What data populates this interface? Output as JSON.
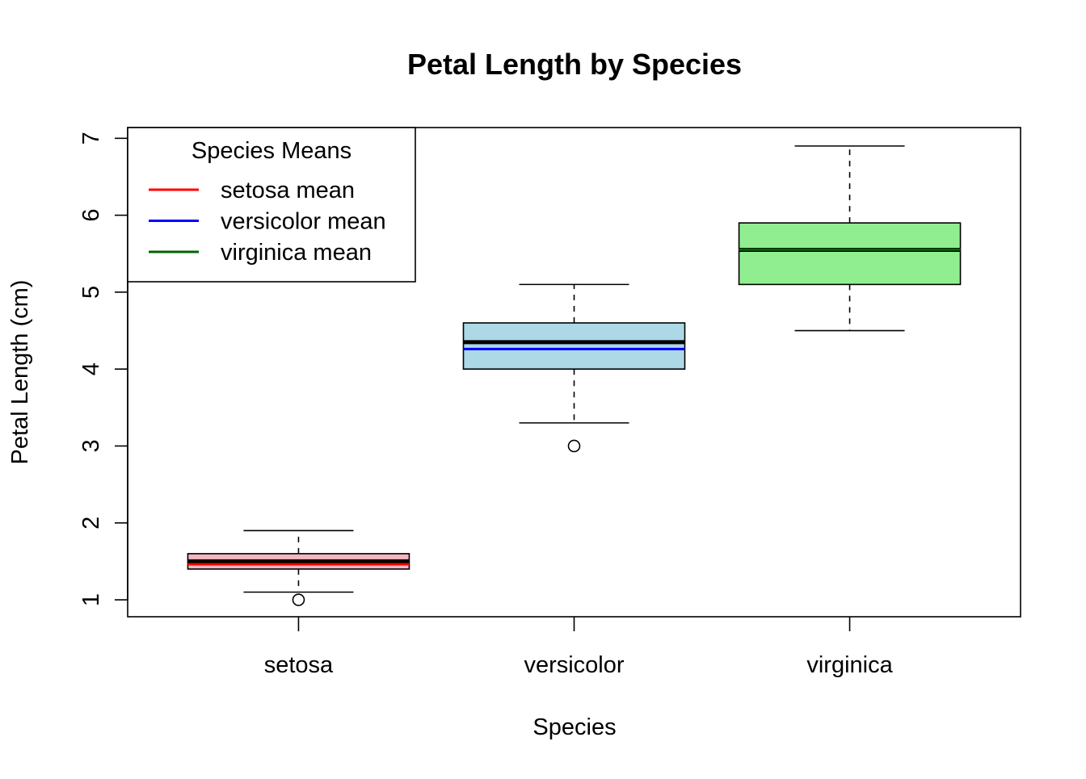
{
  "chart_data": {
    "type": "boxplot",
    "title": "Petal Length by Species",
    "xlabel": "Species",
    "ylabel": "Petal Length (cm)",
    "categories": [
      "setosa",
      "versicolor",
      "virginica"
    ],
    "ylim": [
      0.78,
      7.14
    ],
    "yticks": [
      1,
      2,
      3,
      4,
      5,
      6,
      7
    ],
    "grid": false,
    "boxes": [
      {
        "name": "setosa",
        "whisker_low": 1.1,
        "q1": 1.4,
        "median": 1.5,
        "q3": 1.6,
        "whisker_high": 1.9,
        "outliers": [
          1.0
        ],
        "fill": "#f4b6c2"
      },
      {
        "name": "versicolor",
        "whisker_low": 3.3,
        "q1": 4.0,
        "median": 4.35,
        "q3": 4.6,
        "whisker_high": 5.1,
        "outliers": [
          3.0
        ],
        "fill": "#add8e6"
      },
      {
        "name": "virginica",
        "whisker_low": 4.5,
        "q1": 5.1,
        "median": 5.55,
        "q3": 5.9,
        "whisker_high": 6.9,
        "outliers": [],
        "fill": "#90ee90"
      }
    ],
    "means": [
      {
        "name": "setosa mean",
        "value": 1.462,
        "color": "#ff0000"
      },
      {
        "name": "versicolor mean",
        "value": 4.26,
        "color": "#0000ff"
      },
      {
        "name": "virginica mean",
        "value": 5.552,
        "color": "#006400"
      }
    ],
    "legend": {
      "title": "Species Means",
      "placement": "top-left",
      "entries": [
        {
          "label": "setosa mean",
          "color": "#ff0000"
        },
        {
          "label": "versicolor mean",
          "color": "#0000ff"
        },
        {
          "label": "virginica mean",
          "color": "#006400"
        }
      ]
    }
  }
}
